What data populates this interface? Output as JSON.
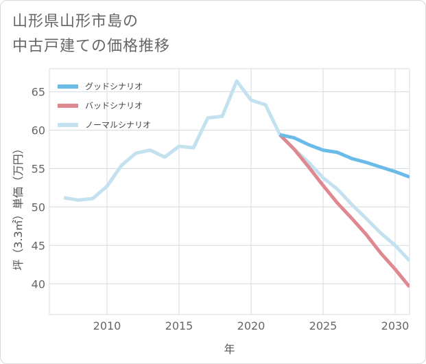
{
  "title": {
    "line1": "山形県山形市島の",
    "line2": "中古戸建ての価格推移"
  },
  "chart_data": {
    "type": "line",
    "title": "山形県山形市島の中古戸建ての価格推移",
    "xlabel": "年",
    "ylabel": "坪（3.3㎡）単価（万円）",
    "xlim": [
      2006,
      2031
    ],
    "ylim": [
      36,
      68
    ],
    "xticks": [
      2010,
      2015,
      2020,
      2025,
      2030
    ],
    "yticks": [
      40,
      45,
      50,
      55,
      60,
      65
    ],
    "grid": true,
    "legend_position": "top-left",
    "series": [
      {
        "name": "ノーマルシナリオ",
        "color": "#c3e1ef",
        "points": [
          [
            2007,
            51.2
          ],
          [
            2008,
            50.9
          ],
          [
            2009,
            51.1
          ],
          [
            2010,
            52.7
          ],
          [
            2011,
            55.4
          ],
          [
            2012,
            57.0
          ],
          [
            2013,
            57.4
          ],
          [
            2014,
            56.5
          ],
          [
            2015,
            57.9
          ],
          [
            2016,
            57.7
          ],
          [
            2017,
            61.6
          ],
          [
            2018,
            61.8
          ],
          [
            2019,
            66.4
          ],
          [
            2020,
            63.9
          ],
          [
            2021,
            63.3
          ],
          [
            2022,
            59.4
          ],
          [
            2023,
            57.5
          ],
          [
            2024,
            55.8
          ],
          [
            2025,
            53.8
          ],
          [
            2026,
            52.3
          ],
          [
            2027,
            50.3
          ],
          [
            2028,
            48.5
          ],
          [
            2029,
            46.6
          ],
          [
            2030,
            45.0
          ],
          [
            2031,
            43.0
          ]
        ]
      },
      {
        "name": "バッドシナリオ",
        "color": "#e08890",
        "points": [
          [
            2022,
            59.4
          ],
          [
            2023,
            57.5
          ],
          [
            2024,
            55.2
          ],
          [
            2025,
            52.8
          ],
          [
            2026,
            50.5
          ],
          [
            2027,
            48.5
          ],
          [
            2028,
            46.4
          ],
          [
            2029,
            44.0
          ],
          [
            2030,
            41.9
          ],
          [
            2031,
            39.6
          ]
        ]
      },
      {
        "name": "グッドシナリオ",
        "color": "#6bbbe9",
        "points": [
          [
            2022,
            59.4
          ],
          [
            2023,
            59.0
          ],
          [
            2024,
            58.1
          ],
          [
            2025,
            57.4
          ],
          [
            2026,
            57.1
          ],
          [
            2027,
            56.3
          ],
          [
            2028,
            55.8
          ],
          [
            2029,
            55.2
          ],
          [
            2030,
            54.6
          ],
          [
            2031,
            53.9
          ]
        ]
      }
    ],
    "legend": [
      {
        "name": "グッドシナリオ",
        "color": "#6bbbe9"
      },
      {
        "name": "バッドシナリオ",
        "color": "#e08890"
      },
      {
        "name": "ノーマルシナリオ",
        "color": "#c3e1ef"
      }
    ]
  },
  "style": {
    "grid_color": "#d5dce2",
    "axis_color": "#9aa4ad"
  }
}
